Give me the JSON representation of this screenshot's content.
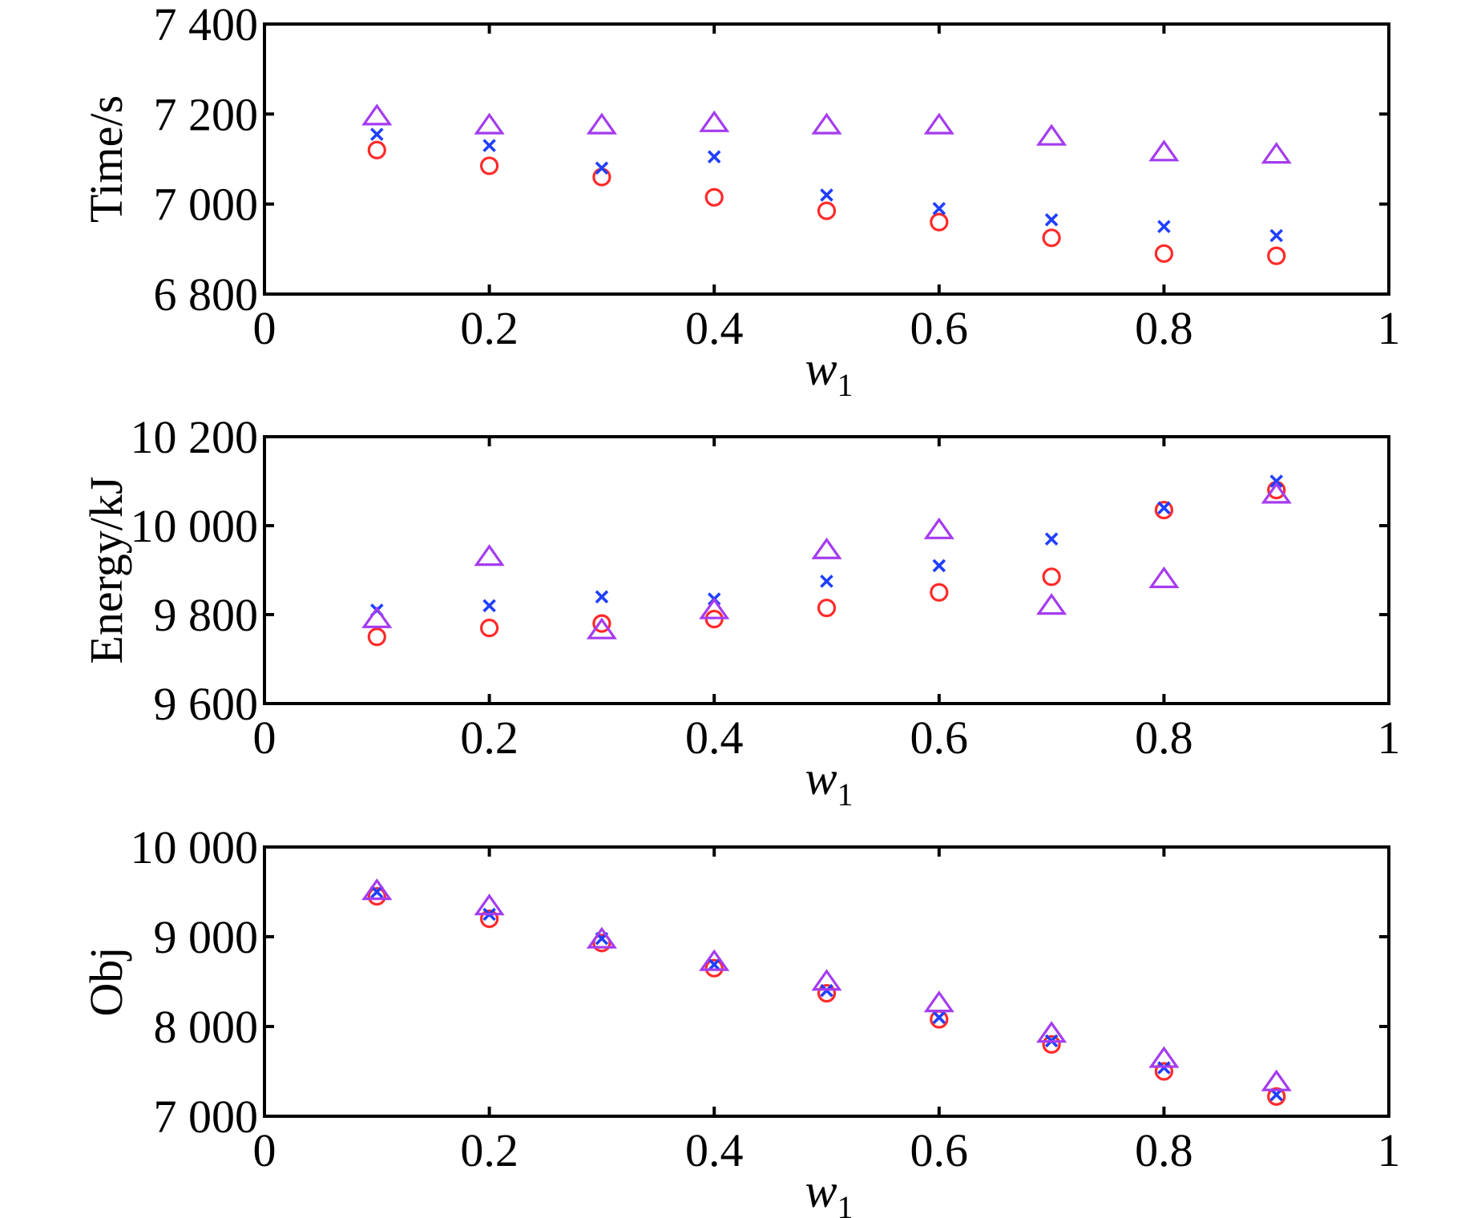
{
  "colors": {
    "circle": "#ff2a2a",
    "cross": "#1f3fff",
    "triangle": "#a53cf0"
  },
  "chart_data": [
    {
      "type": "scatter",
      "ylabel": "Time/s",
      "xlabel": "w",
      "xlabel_sub": "1",
      "xlim": [
        0,
        1
      ],
      "ylim": [
        6800,
        7400
      ],
      "xticks": [
        0,
        0.2,
        0.4,
        0.6,
        0.8,
        1
      ],
      "xtick_labels": [
        "0",
        "0.2",
        "0.4",
        "0.6",
        "0.8",
        "1"
      ],
      "yticks": [
        6800,
        7000,
        7200,
        7400
      ],
      "ytick_labels": [
        "6 800",
        "7 000",
        "7 200",
        "7 400"
      ],
      "x": [
        0.1,
        0.2,
        0.3,
        0.4,
        0.5,
        0.6,
        0.7,
        0.8,
        0.9
      ],
      "series": [
        {
          "marker": "circle",
          "color": "#ff2a2a",
          "values": [
            7120,
            7085,
            7060,
            7015,
            6985,
            6960,
            6925,
            6890,
            6885
          ]
        },
        {
          "marker": "cross",
          "color": "#1f3fff",
          "values": [
            7155,
            7130,
            7080,
            7105,
            7020,
            6990,
            6965,
            6950,
            6930
          ]
        },
        {
          "marker": "triangle",
          "color": "#a53cf0",
          "values": [
            7195,
            7175,
            7175,
            7180,
            7175,
            7175,
            7150,
            7115,
            7110
          ]
        }
      ]
    },
    {
      "type": "scatter",
      "ylabel": "Energy/kJ",
      "xlabel": "w",
      "xlabel_sub": "1",
      "xlim": [
        0,
        1
      ],
      "ylim": [
        9600,
        10200
      ],
      "xticks": [
        0,
        0.2,
        0.4,
        0.6,
        0.8,
        1
      ],
      "xtick_labels": [
        "0",
        "0.2",
        "0.4",
        "0.6",
        "0.8",
        "1"
      ],
      "yticks": [
        9600,
        9800,
        10000,
        10200
      ],
      "ytick_labels": [
        "9 600",
        "9 800",
        "10 000",
        "10 200"
      ],
      "x": [
        0.1,
        0.2,
        0.3,
        0.4,
        0.5,
        0.6,
        0.7,
        0.8,
        0.9
      ],
      "series": [
        {
          "marker": "circle",
          "color": "#ff2a2a",
          "values": [
            9750,
            9770,
            9780,
            9790,
            9815,
            9850,
            9885,
            10035,
            10080
          ]
        },
        {
          "marker": "cross",
          "color": "#1f3fff",
          "values": [
            9810,
            9820,
            9840,
            9835,
            9875,
            9910,
            9970,
            10040,
            10100
          ]
        },
        {
          "marker": "triangle",
          "color": "#a53cf0",
          "values": [
            9790,
            9930,
            9765,
            9810,
            9945,
            9990,
            9820,
            9880,
            10070
          ]
        }
      ]
    },
    {
      "type": "scatter",
      "ylabel": "Obj",
      "xlabel": "w",
      "xlabel_sub": "1",
      "xlim": [
        0,
        1
      ],
      "ylim": [
        7000,
        10000
      ],
      "xticks": [
        0,
        0.2,
        0.4,
        0.6,
        0.8,
        1
      ],
      "xtick_labels": [
        "0",
        "0.2",
        "0.4",
        "0.6",
        "0.8",
        "1"
      ],
      "yticks": [
        7000,
        8000,
        9000,
        10000
      ],
      "ytick_labels": [
        "7 000",
        "8 000",
        "9 000",
        "10 000"
      ],
      "x": [
        0.1,
        0.2,
        0.3,
        0.4,
        0.5,
        0.6,
        0.7,
        0.8,
        0.9
      ],
      "series": [
        {
          "marker": "circle",
          "color": "#ff2a2a",
          "values": [
            9450,
            9200,
            8930,
            8650,
            8370,
            8080,
            7800,
            7500,
            7220
          ]
        },
        {
          "marker": "cross",
          "color": "#1f3fff",
          "values": [
            9500,
            9250,
            8980,
            8690,
            8400,
            8100,
            7840,
            7540,
            7240
          ]
        },
        {
          "marker": "triangle",
          "color": "#a53cf0",
          "values": [
            9510,
            9340,
            8970,
            8720,
            8500,
            8260,
            7920,
            7640,
            7380
          ]
        }
      ]
    }
  ]
}
